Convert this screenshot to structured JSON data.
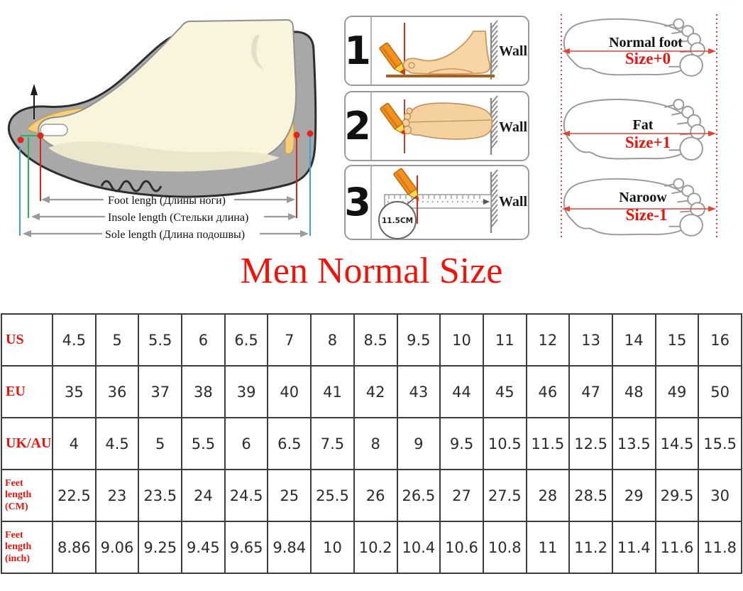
{
  "title": "Men Normal Size",
  "measure_diagram": {
    "labels": [
      "Foot lengh (Длины ноги)",
      "Insole length (Стельки длина)",
      "Sole length (Длина подошвы)"
    ]
  },
  "steps": {
    "items": [
      {
        "number": "1",
        "wall": "Wall"
      },
      {
        "number": "2",
        "wall": "Wall"
      },
      {
        "number": "3",
        "wall": "Wall",
        "note": "11.5CM"
      }
    ]
  },
  "foot_types": [
    {
      "name": "Normal foot",
      "size_adjust": "Size+0"
    },
    {
      "name": "Fat",
      "size_adjust": "Size+1"
    },
    {
      "name": "Naroow",
      "size_adjust": "Size-1"
    }
  ],
  "size_table": {
    "rows": [
      {
        "header": "US",
        "values": [
          "4.5",
          "5",
          "5.5",
          "6",
          "6.5",
          "7",
          "8",
          "8.5",
          "9.5",
          "10",
          "11",
          "12",
          "13",
          "14",
          "15",
          "16"
        ]
      },
      {
        "header": "EU",
        "values": [
          "35",
          "36",
          "37",
          "38",
          "39",
          "40",
          "41",
          "42",
          "43",
          "44",
          "45",
          "46",
          "47",
          "48",
          "49",
          "50"
        ]
      },
      {
        "header": "UK/AU",
        "values": [
          "4",
          "4.5",
          "5",
          "5.5",
          "6",
          "6.5",
          "7.5",
          "8",
          "9",
          "9.5",
          "10.5",
          "11.5",
          "12.5",
          "13.5",
          "14.5",
          "15.5"
        ]
      },
      {
        "header": "Feet length (CM)",
        "values": [
          "22.5",
          "23",
          "23.5",
          "24",
          "24.5",
          "25",
          "25.5",
          "26",
          "26.5",
          "27",
          "27.5",
          "28",
          "28.5",
          "29",
          "29.5",
          "30"
        ]
      },
      {
        "header": "Feet length (inch)",
        "values": [
          "8.86",
          "9.06",
          "9.25",
          "9.45",
          "9.65",
          "9.84",
          "10",
          "10.2",
          "10.4",
          "10.6",
          "10.8",
          "11",
          "11.2",
          "11.4",
          "11.6",
          "11.8"
        ]
      }
    ]
  },
  "colors": {
    "accent_red": "#e8150d",
    "title_red": "#ee140b",
    "measure_red": "#d6251d",
    "measure_green": "#27b34f",
    "measure_blue": "#39a3dc",
    "shoe_gray": "#a8a8a8",
    "insole_yellow": "#f6cf7d",
    "skin_tan": "#f8d5a4",
    "table_border": "#3c3c3c"
  }
}
